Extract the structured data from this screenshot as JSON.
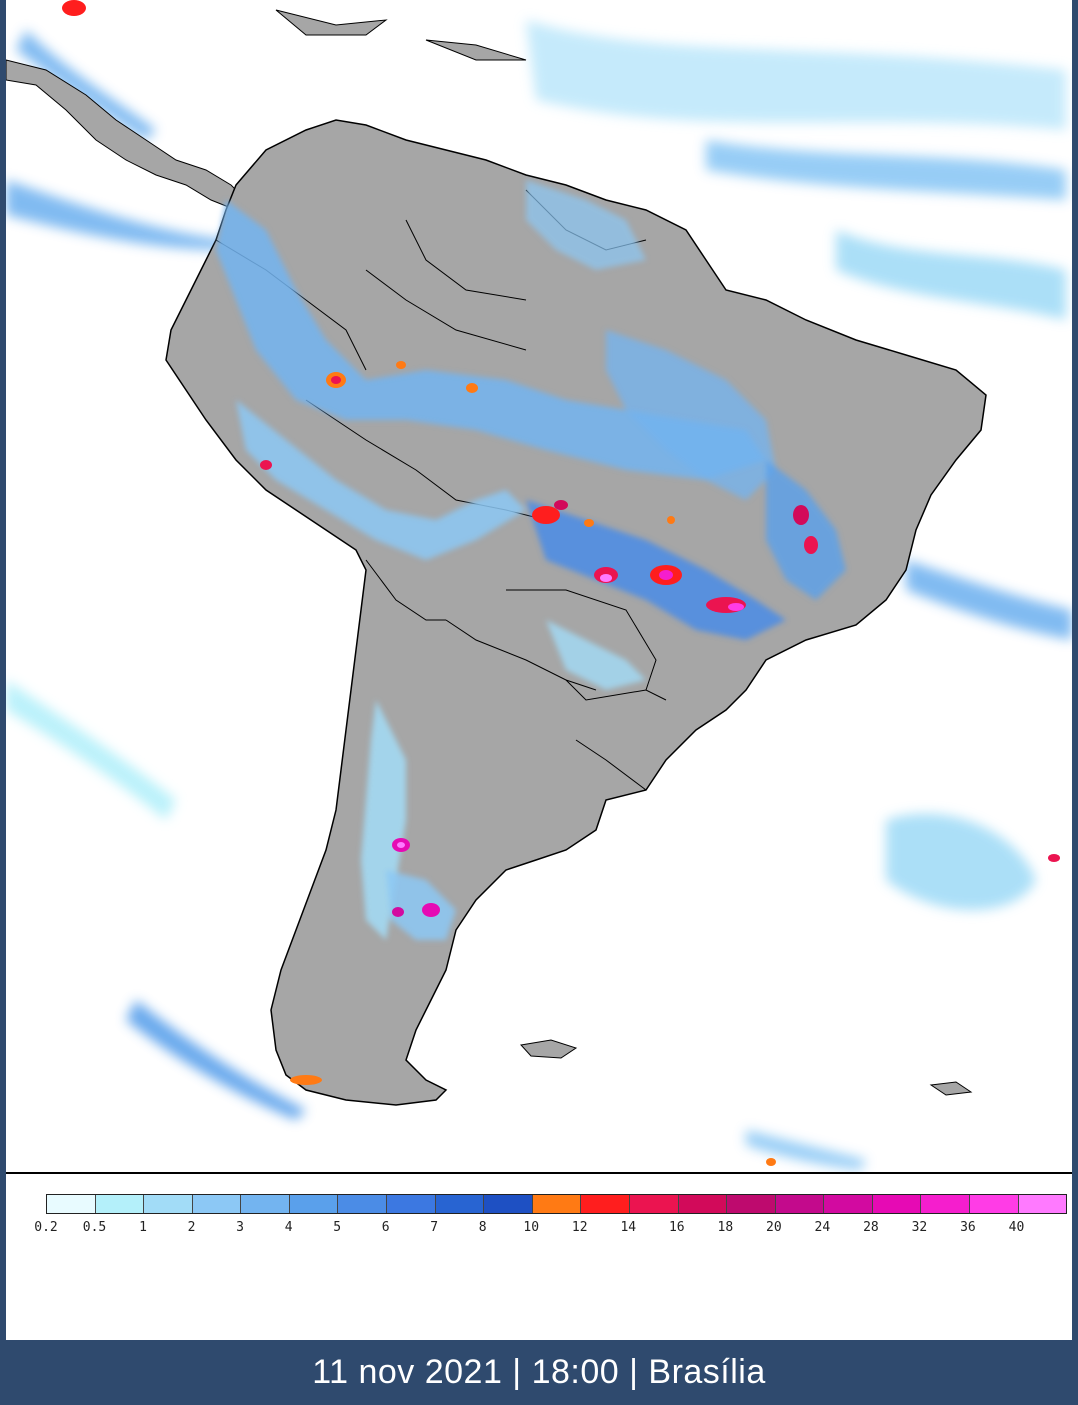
{
  "legend": {
    "labels": [
      "0.2",
      "0.5",
      "1",
      "2",
      "3",
      "4",
      "5",
      "6",
      "7",
      "8",
      "10",
      "12",
      "14",
      "16",
      "18",
      "20",
      "24",
      "28",
      "32",
      "36",
      "40"
    ],
    "colors": [
      "#e8fbff",
      "#b4f0fa",
      "#a2dcf7",
      "#8cc8f5",
      "#73b4f0",
      "#5aa0eb",
      "#4b8ce6",
      "#3c78e1",
      "#2864d2",
      "#1e50c3",
      "#ff7a14",
      "#ff1e1e",
      "#eb1450",
      "#d20a5a",
      "#be0a6e",
      "#c30a8c",
      "#d20aa0",
      "#e60ab4",
      "#f51ecd",
      "#ff3ce6",
      "#ff7aff"
    ]
  },
  "colors": {
    "land": "#a6a6a6",
    "ocean": "#ffffff",
    "border": "#000000",
    "footer_bg": "#2f4a6e"
  },
  "footer": {
    "timestamp": "11 nov 2021 | 18:00 | Brasília"
  }
}
